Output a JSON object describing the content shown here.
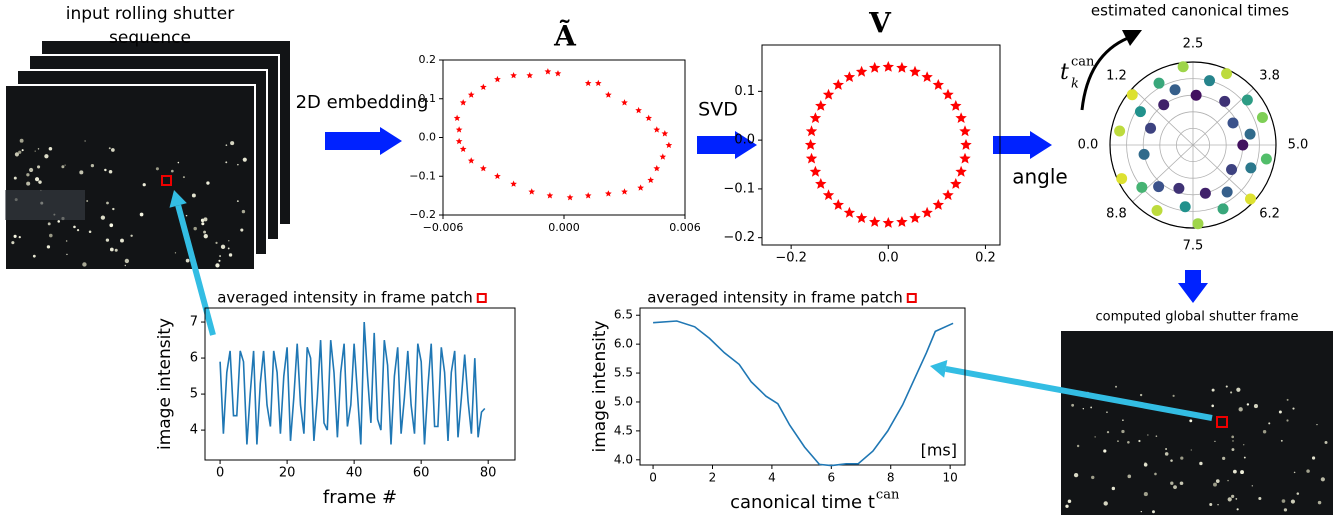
{
  "annotations": {
    "input": [
      "input rolling shutter",
      "sequence"
    ],
    "embed": "2D embedding",
    "svd": "SVD",
    "angle": "angle",
    "output": "computed global shutter frame"
  },
  "chart_data": [
    {
      "type": "scatter",
      "title": "Ã",
      "color": "#ff0000",
      "marker": "star",
      "x": [
        -0.0052,
        -0.0053,
        -0.005,
        -0.0046,
        -0.004,
        -0.0033,
        -0.0025,
        -0.0017,
        -0.0008,
        -0.0003,
        0.0012,
        0.0017,
        0.0022,
        0.003,
        0.0037,
        0.0042,
        0.0046,
        0.005,
        0.0052,
        0.0049,
        0.0046,
        0.0043,
        0.0038,
        0.003,
        0.0022,
        0.0012,
        0.0003,
        -0.0007,
        -0.0016,
        -0.0025,
        -0.0033,
        -0.004,
        -0.0046,
        -0.005,
        -0.0052
      ],
      "y": [
        0.02,
        0.05,
        0.09,
        0.11,
        0.13,
        0.15,
        0.16,
        0.16,
        0.17,
        0.165,
        0.14,
        0.14,
        0.11,
        0.09,
        0.07,
        0.05,
        0.02,
        0.01,
        -0.02,
        -0.05,
        -0.08,
        -0.11,
        -0.13,
        -0.14,
        -0.145,
        -0.15,
        -0.155,
        -0.15,
        -0.14,
        -0.12,
        -0.1,
        -0.08,
        -0.06,
        -0.03,
        -0.01
      ],
      "xlim": [
        -0.006,
        0.006
      ],
      "ylim": [
        -0.2,
        0.2
      ],
      "xticks": [
        {
          "value": -0.006,
          "label": "−0.006"
        },
        {
          "value": 0,
          "label": "0.000"
        },
        0.006
      ],
      "yticks": [
        {
          "value": -0.2,
          "label": "−0.2"
        },
        {
          "value": -0.1,
          "label": "−0.1"
        },
        {
          "value": 0,
          "label": "0.0"
        },
        0.1,
        0.2
      ]
    },
    {
      "type": "scatter",
      "title": "V",
      "color": "#ff0000",
      "marker": "star",
      "x": [
        0.16,
        0.158,
        0.15,
        0.139,
        0.123,
        0.103,
        0.08,
        0.055,
        0.028,
        0,
        -0.028,
        -0.055,
        -0.08,
        -0.103,
        -0.123,
        -0.139,
        -0.15,
        -0.158,
        -0.16,
        -0.158,
        -0.15,
        -0.139,
        -0.123,
        -0.103,
        -0.08,
        -0.055,
        -0.028,
        0,
        0.028,
        0.055,
        0.08,
        0.103,
        0.123,
        0.139,
        0.15,
        0.158
      ],
      "y": [
        -0.01,
        0.018,
        0.045,
        0.07,
        0.093,
        0.113,
        0.129,
        0.14,
        0.148,
        0.15,
        0.148,
        0.14,
        0.129,
        0.113,
        0.093,
        0.07,
        0.045,
        0.018,
        -0.01,
        -0.038,
        -0.065,
        -0.09,
        -0.113,
        -0.133,
        -0.149,
        -0.16,
        -0.168,
        -0.17,
        -0.168,
        -0.16,
        -0.149,
        -0.133,
        -0.113,
        -0.09,
        -0.065,
        -0.038
      ],
      "xlim": [
        -0.26,
        0.23
      ],
      "ylim": [
        -0.215,
        0.195
      ],
      "xticks": [
        {
          "value": -0.2,
          "label": "−0.2"
        },
        {
          "value": 0,
          "label": "0.0"
        },
        0.2
      ],
      "yticks": [
        {
          "value": -0.2,
          "label": "−0.2"
        },
        {
          "value": -0.1,
          "label": "−0.1"
        },
        {
          "value": 0,
          "label": "0.0"
        },
        0.1
      ]
    },
    {
      "type": "polar",
      "title": "estimated canonical times",
      "annotation": {
        "t": "t",
        "sub": "k",
        "sup": "can"
      },
      "colormap": "viridis",
      "grid": true,
      "theta": [
        0.3,
        0.6,
        0.9,
        1.1,
        1.5,
        1.7,
        2.0,
        2.3,
        2.6,
        2.9,
        3.2,
        3.5,
        3.9,
        4.2,
        4.4,
        4.7,
        5.0,
        5.3,
        5.6,
        5.9,
        6.2,
        6.5,
        6.8,
        7.1,
        7.4,
        7.7,
        8.0,
        8.3,
        8.6,
        8.9,
        9.3,
        9.7
      ],
      "r": [
        0.9,
        0.55,
        0.75,
        0.95,
        0.6,
        0.85,
        0.7,
        0.95,
        0.6,
        0.8,
        0.95,
        0.65,
        0.85,
        0.55,
        0.9,
        0.7,
        0.6,
        0.9,
        0.75,
        0.55,
        0.95,
        0.7,
        0.85,
        0.6,
        0.95,
        0.75,
        0.55,
        0.9,
        0.65,
        0.8,
        0.95,
        0.6
      ],
      "c": [
        0.9,
        0.2,
        0.5,
        0.95,
        0.1,
        0.6,
        0.3,
        0.85,
        0.05,
        0.45,
        0.9,
        0.15,
        0.55,
        0.25,
        0.8,
        0.35,
        0.05,
        0.7,
        0.4,
        0.2,
        0.95,
        0.3,
        0.6,
        0.1,
        0.85,
        0.5,
        0.15,
        0.9,
        0.25,
        0.65,
        0.95,
        0.35
      ],
      "thetalim": [
        0,
        10
      ],
      "thetaticks": [
        {
          "value": 0,
          "label": "0.0"
        },
        1.2,
        2.5,
        3.8,
        {
          "value": 5,
          "label": "5.0"
        },
        6.2,
        7.5,
        8.8
      ],
      "rlim": [
        0,
        1
      ],
      "rticks": [
        0.2,
        0.4,
        0.6,
        0.8,
        1
      ]
    },
    {
      "type": "line",
      "title": "averaged intensity in frame patch",
      "xlabel": "frame #",
      "ylabel": "image intensity",
      "color": "#1f77b4",
      "x": [
        0,
        1,
        2,
        3,
        4,
        5,
        6,
        7,
        8,
        9,
        10,
        11,
        12,
        13,
        14,
        15,
        16,
        17,
        18,
        19,
        20,
        21,
        22,
        23,
        24,
        25,
        26,
        27,
        28,
        29,
        30,
        31,
        32,
        33,
        34,
        35,
        36,
        37,
        38,
        39,
        40,
        41,
        42,
        43,
        44,
        45,
        46,
        47,
        48,
        49,
        50,
        51,
        52,
        53,
        54,
        55,
        56,
        57,
        58,
        59,
        60,
        61,
        62,
        63,
        64,
        65,
        66,
        67,
        68,
        69,
        70,
        71,
        72,
        73,
        74,
        75,
        76,
        77,
        78,
        79
      ],
      "y": [
        5.9,
        3.9,
        5.6,
        6.2,
        4.4,
        4.4,
        6.2,
        5.9,
        3.6,
        5.0,
        6.2,
        3.6,
        5.3,
        6.2,
        4.7,
        4.1,
        6.2,
        5.6,
        3.9,
        5.5,
        6.3,
        3.7,
        4.9,
        6.4,
        4.7,
        3.9,
        6.3,
        6.0,
        3.7,
        4.9,
        6.5,
        4.2,
        4.0,
        6.5,
        5.6,
        3.8,
        5.6,
        6.4,
        4.1,
        4.7,
        6.4,
        5.0,
        3.6,
        7.0,
        5.5,
        4.2,
        6.7,
        4.3,
        4.0,
        6.5,
        5.8,
        3.6,
        5.5,
        6.3,
        3.9,
        4.9,
        6.2,
        4.7,
        3.9,
        6.4,
        5.9,
        3.6,
        5.2,
        6.4,
        4.1,
        4.1,
        6.3,
        5.6,
        3.7,
        5.6,
        6.2,
        3.8,
        4.9,
        6.1,
        4.8,
        3.9,
        6.0,
        3.8,
        4.5,
        4.6
      ],
      "xlim": [
        -4.5,
        88
      ],
      "ylim": [
        3.17,
        7.39
      ],
      "xticks": [
        0,
        20,
        40,
        60,
        80
      ],
      "yticks": [
        4,
        5,
        6,
        7
      ]
    },
    {
      "type": "line",
      "title": "averaged intensity in frame patch",
      "xlabel": "canonical time t",
      "xlabel_sup": "can",
      "ylabel": "image intensity",
      "annotation": "[ms]",
      "color": "#1f77b4",
      "x": [
        0,
        0.8,
        1.4,
        1.9,
        2.4,
        2.9,
        3.3,
        3.8,
        4.2,
        4.6,
        5.1,
        5.6,
        6.0,
        6.5,
        6.9,
        7.4,
        7.9,
        8.4,
        8.8,
        9.2,
        9.5,
        10.1
      ],
      "y": [
        6.37,
        6.4,
        6.3,
        6.1,
        5.85,
        5.65,
        5.35,
        5.1,
        4.97,
        4.6,
        4.22,
        3.92,
        3.9,
        3.93,
        3.93,
        4.15,
        4.5,
        4.95,
        5.4,
        5.85,
        6.22,
        6.36
      ],
      "xlim": [
        -0.44,
        10.5
      ],
      "ylim": [
        3.91,
        6.625
      ],
      "xticks": [
        0,
        2,
        4,
        6,
        8,
        10
      ],
      "yticks": [
        {
          "value": 4,
          "label": "4.0"
        },
        4.5,
        {
          "value": 5,
          "label": "5.0"
        },
        5.5,
        {
          "value": 6,
          "label": "6.0"
        },
        6.5
      ]
    }
  ]
}
